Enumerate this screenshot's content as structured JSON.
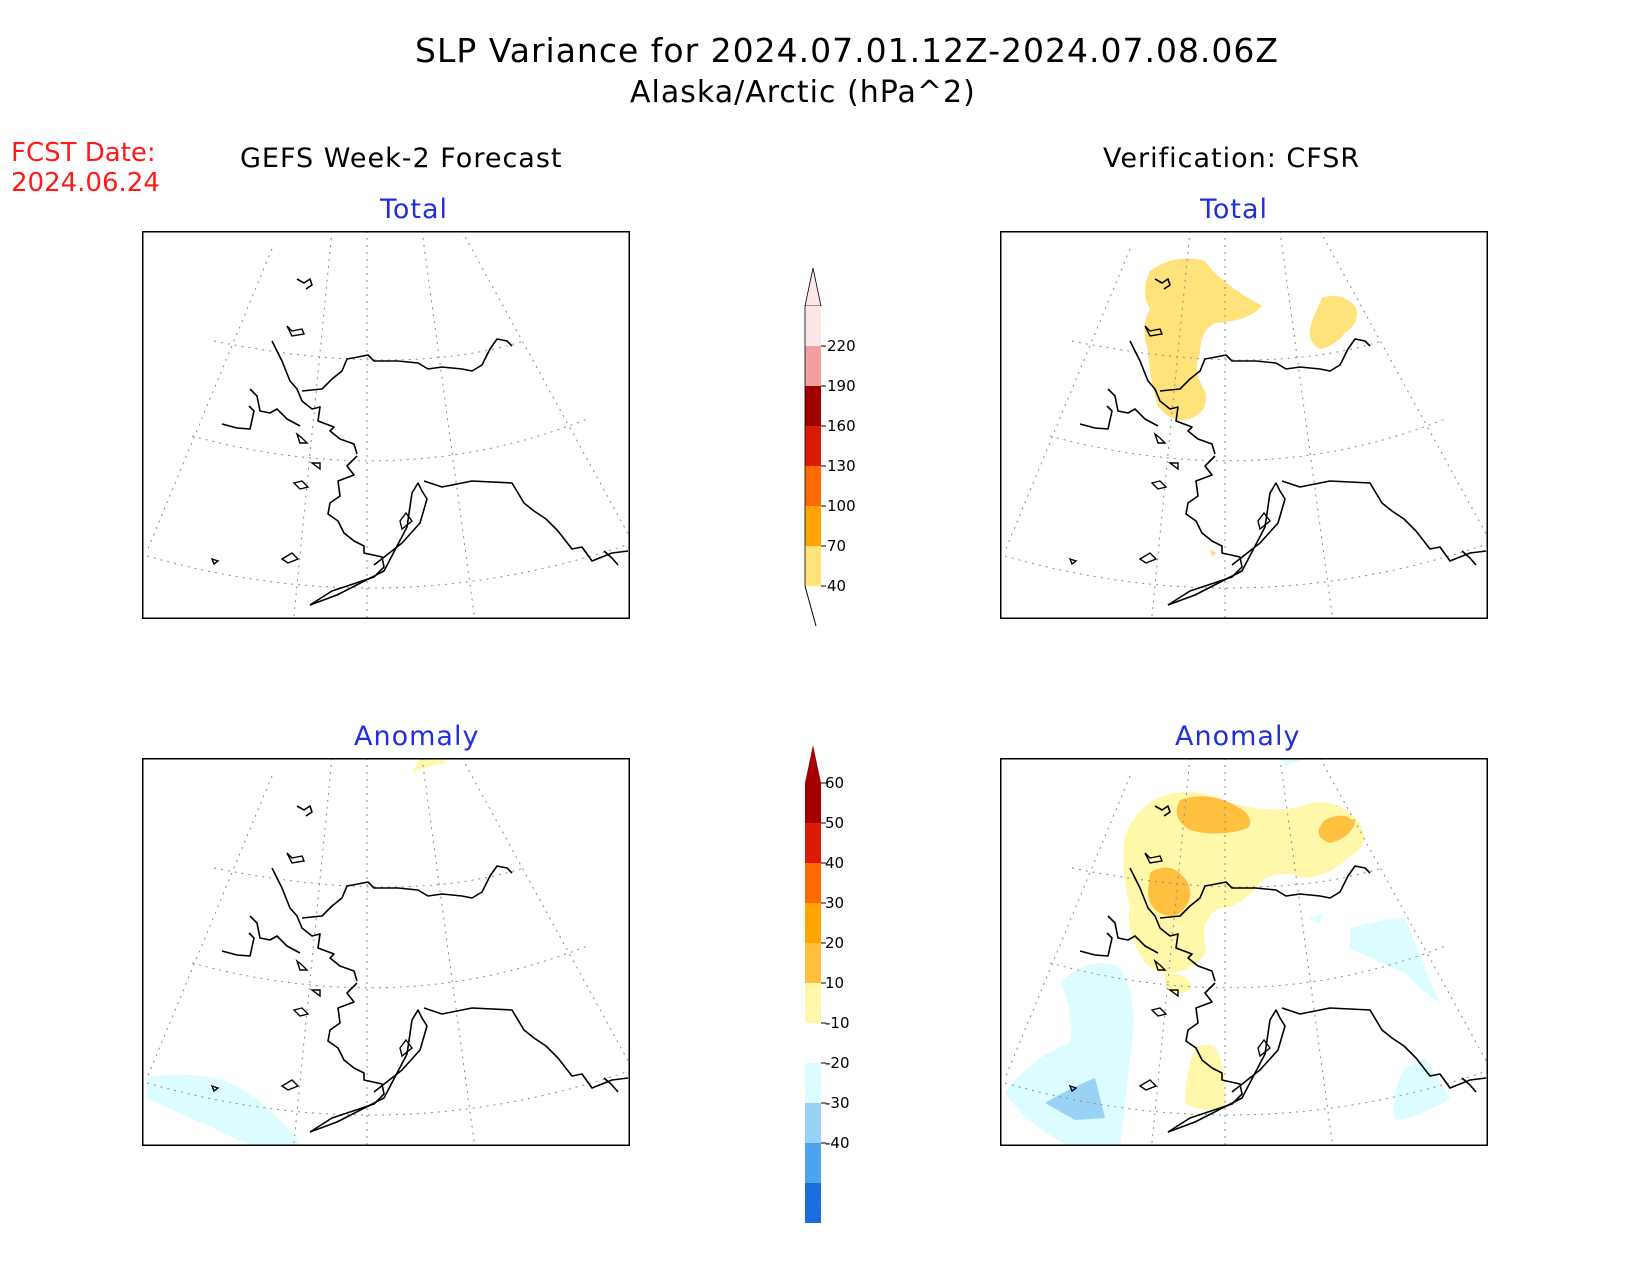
{
  "title": "SLP Variance for 2024.07.01.12Z-2024.07.08.06Z",
  "subtitle": "Alaska/Arctic (hPa^2)",
  "fcst_date": {
    "label": "FCST Date:",
    "value": "2024.06.24"
  },
  "columns": {
    "left": "GEFS Week-2 Forecast",
    "right": "Verification: CFSR"
  },
  "panels": {
    "top_left": "Total",
    "top_right": "Total",
    "bottom_left": "Anomaly",
    "bottom_right": "Anomaly"
  },
  "colorbar_total": {
    "labels": [
      "220",
      "190",
      "160",
      "130",
      "100",
      "70",
      "40"
    ],
    "colors": [
      "#fde6e6",
      "#f0a0a0",
      "#9e0000",
      "#dd1a0a",
      "#ff6a00",
      "#ffa500",
      "#ffe37a"
    ]
  },
  "colorbar_anomaly": {
    "labels": [
      "60",
      "50",
      "40",
      "30",
      "20",
      "10",
      "-10",
      "-20",
      "-30",
      "-40"
    ],
    "colors": [
      "#a50000",
      "#dd1a0a",
      "#ff6a00",
      "#ffa500",
      "#ffc040",
      "#fff7aa",
      "#ffffff",
      "#dcfcff",
      "#9ad2f5",
      "#4ea3ee",
      "#1a6fdc"
    ]
  },
  "colors": {
    "title_text": "#000000",
    "panel_label": "#1f2fe0",
    "fcst_date": "#ff1a1a"
  }
}
